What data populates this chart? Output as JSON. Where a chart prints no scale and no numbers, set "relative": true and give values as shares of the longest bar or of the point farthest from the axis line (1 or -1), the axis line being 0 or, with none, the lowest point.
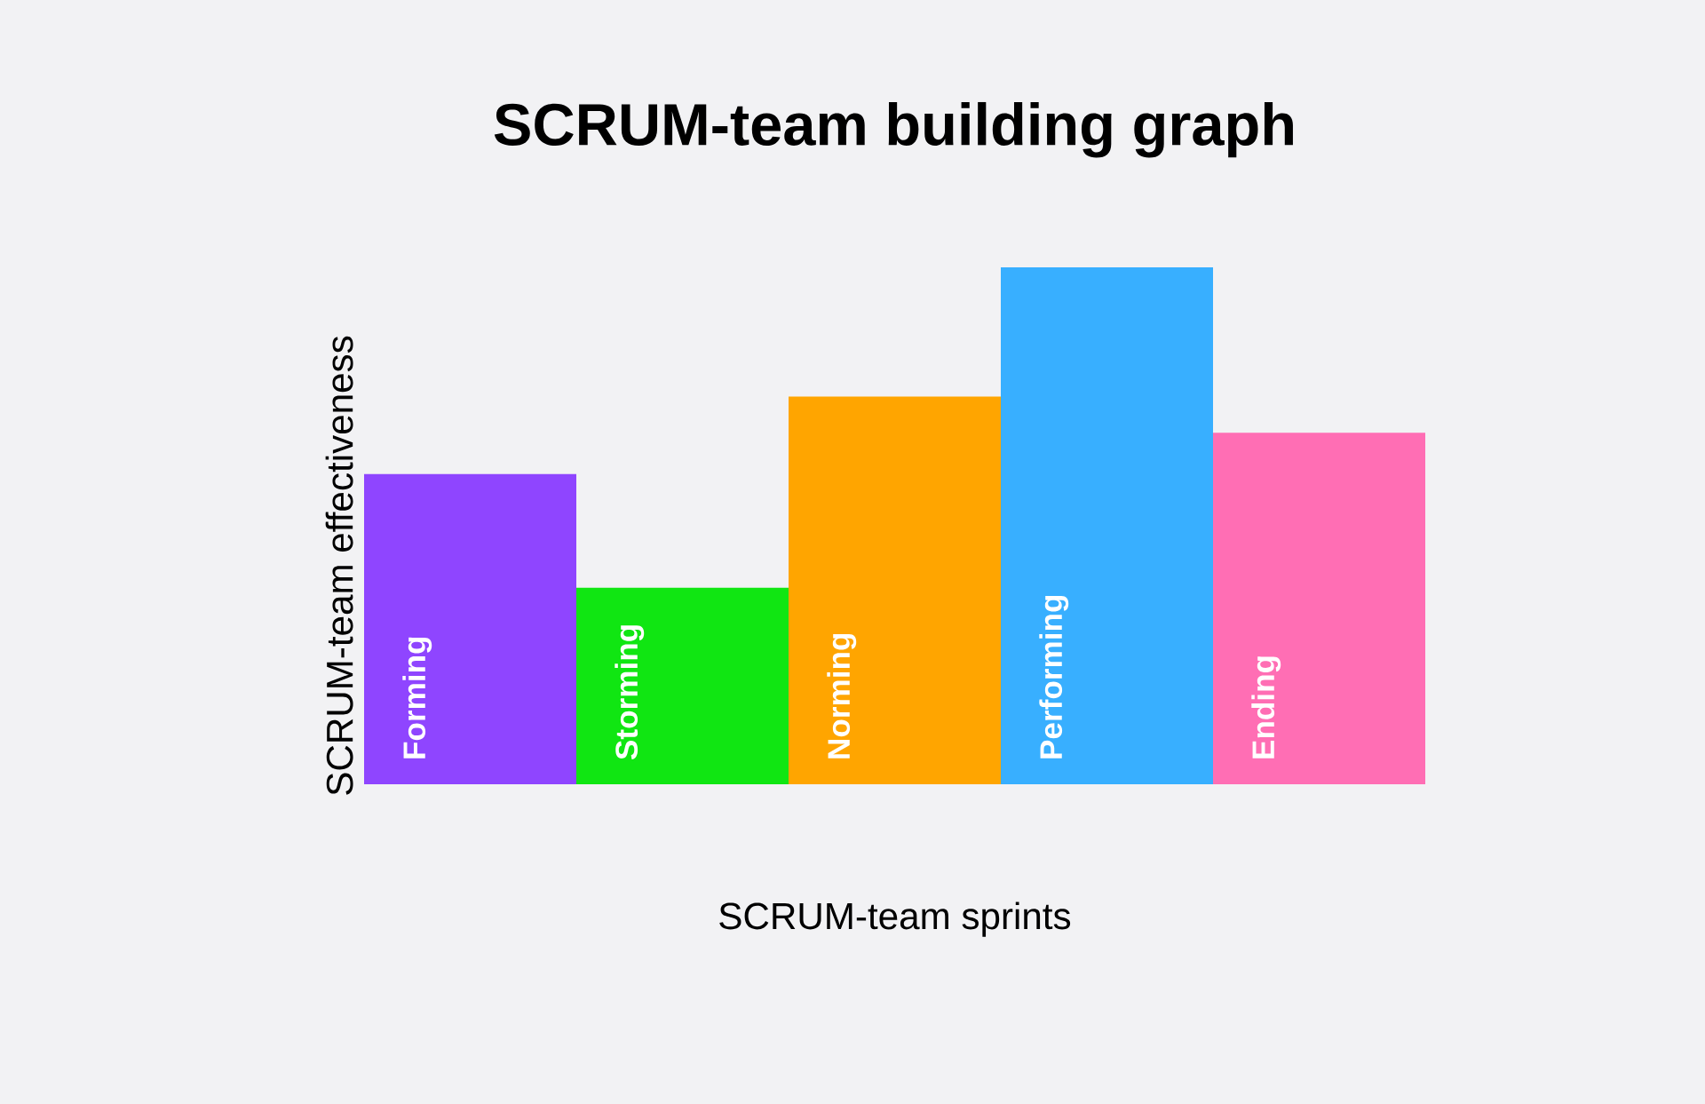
{
  "chart_data": {
    "type": "bar",
    "title": "SCRUM-team building graph",
    "xlabel": "SCRUM-team sprints",
    "ylabel": "SCRUM-team effectiveness",
    "categories": [
      "Forming",
      "Storming",
      "Norming",
      "Performing",
      "Ending"
    ],
    "values": [
      0.6,
      0.38,
      0.75,
      1,
      0.68
    ],
    "colors": [
      "#8f45ff",
      "#10e612",
      "#ffa500",
      "#38afff",
      "#ff6eb4"
    ],
    "relative": true
  }
}
